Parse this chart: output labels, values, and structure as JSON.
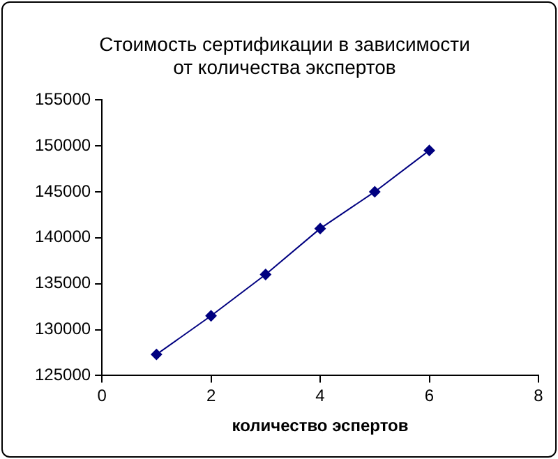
{
  "chart_data": {
    "type": "line",
    "title": "Стоимость сертификации в зависимости\nот количества экспертов",
    "xlabel": "количество эспертов",
    "x": [
      1,
      2,
      3,
      4,
      5,
      6
    ],
    "series": [
      {
        "color": "#000080",
        "values": [
          127300,
          131500,
          136000,
          141000,
          145000,
          149500
        ]
      }
    ],
    "xlim": [
      0,
      8
    ],
    "xticks": [
      0,
      2,
      4,
      6,
      8
    ],
    "ylim": [
      125000,
      155000
    ],
    "yticks": [
      125000,
      130000,
      135000,
      140000,
      145000,
      150000,
      155000
    ],
    "grid": false,
    "legend": false,
    "marker": "diamond",
    "line_style": "solid"
  }
}
